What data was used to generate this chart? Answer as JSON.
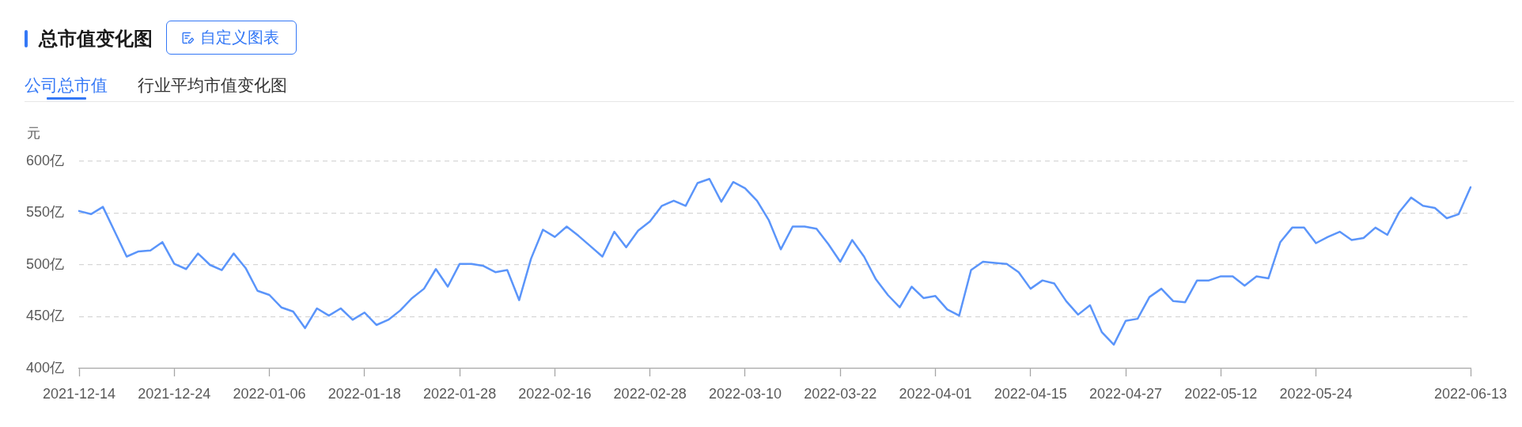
{
  "chart_data": {
    "type": "line",
    "title": "总市值变化图",
    "ylabel": "元",
    "annotations": [
      "自定义图表",
      "公司总市值",
      "行业平均市值变化图"
    ],
    "categories": [
      "2021-12-14",
      null,
      null,
      null,
      null,
      null,
      null,
      null,
      "2021-12-24",
      null,
      null,
      null,
      null,
      null,
      null,
      null,
      "2022-01-06",
      null,
      null,
      null,
      null,
      null,
      null,
      null,
      "2022-01-18",
      null,
      null,
      null,
      null,
      null,
      null,
      null,
      "2022-01-28",
      null,
      null,
      null,
      null,
      null,
      null,
      null,
      "2022-02-16",
      null,
      null,
      null,
      null,
      null,
      null,
      null,
      "2022-02-28",
      null,
      null,
      null,
      null,
      null,
      null,
      null,
      "2022-03-10",
      null,
      null,
      null,
      null,
      null,
      null,
      null,
      "2022-03-22",
      null,
      null,
      null,
      null,
      null,
      null,
      null,
      "2022-04-01",
      null,
      null,
      null,
      null,
      null,
      null,
      null,
      "2022-04-15",
      null,
      null,
      null,
      null,
      null,
      null,
      null,
      "2022-04-27",
      null,
      null,
      null,
      null,
      null,
      null,
      null,
      "2022-05-12",
      null,
      null,
      null,
      null,
      null,
      null,
      null,
      "2022-05-24",
      null,
      null,
      null,
      null,
      null,
      null,
      null,
      null,
      null,
      null,
      null,
      null,
      "2022-06-13"
    ],
    "values": [
      552,
      549,
      556,
      532,
      508,
      513,
      514,
      522,
      501,
      496,
      511,
      500,
      495,
      511,
      497,
      475,
      471,
      459,
      455,
      439,
      458,
      451,
      458,
      447,
      454,
      442,
      447,
      456,
      468,
      477,
      496,
      479,
      501,
      501,
      499,
      493,
      495,
      466,
      506,
      534,
      527,
      537,
      528,
      518,
      508,
      532,
      517,
      533,
      542,
      557,
      562,
      557,
      579,
      583,
      561,
      580,
      574,
      562,
      543,
      515,
      537,
      537,
      535,
      520,
      503,
      524,
      508,
      486,
      471,
      459,
      479,
      468,
      470,
      457,
      451,
      495,
      503,
      502,
      501,
      493,
      477,
      485,
      482,
      465,
      452,
      461,
      435,
      423,
      446,
      448,
      469,
      477,
      465,
      464,
      485,
      485,
      489,
      489,
      480,
      489,
      487,
      522,
      536,
      536,
      521,
      527,
      532,
      524,
      526,
      536,
      529,
      551,
      565,
      557,
      555,
      545,
      549,
      575
    ],
    "color": "#5b95fa",
    "ylim": [
      400,
      600
    ],
    "yticks": [
      {
        "value": 400,
        "label": "400亿"
      },
      {
        "value": 450,
        "label": "450亿"
      },
      {
        "value": 500,
        "label": "500亿"
      },
      {
        "value": 550,
        "label": "550亿"
      },
      {
        "value": 600,
        "label": "600亿"
      }
    ],
    "grid": "y",
    "marker": "none",
    "line_style": "solid"
  }
}
